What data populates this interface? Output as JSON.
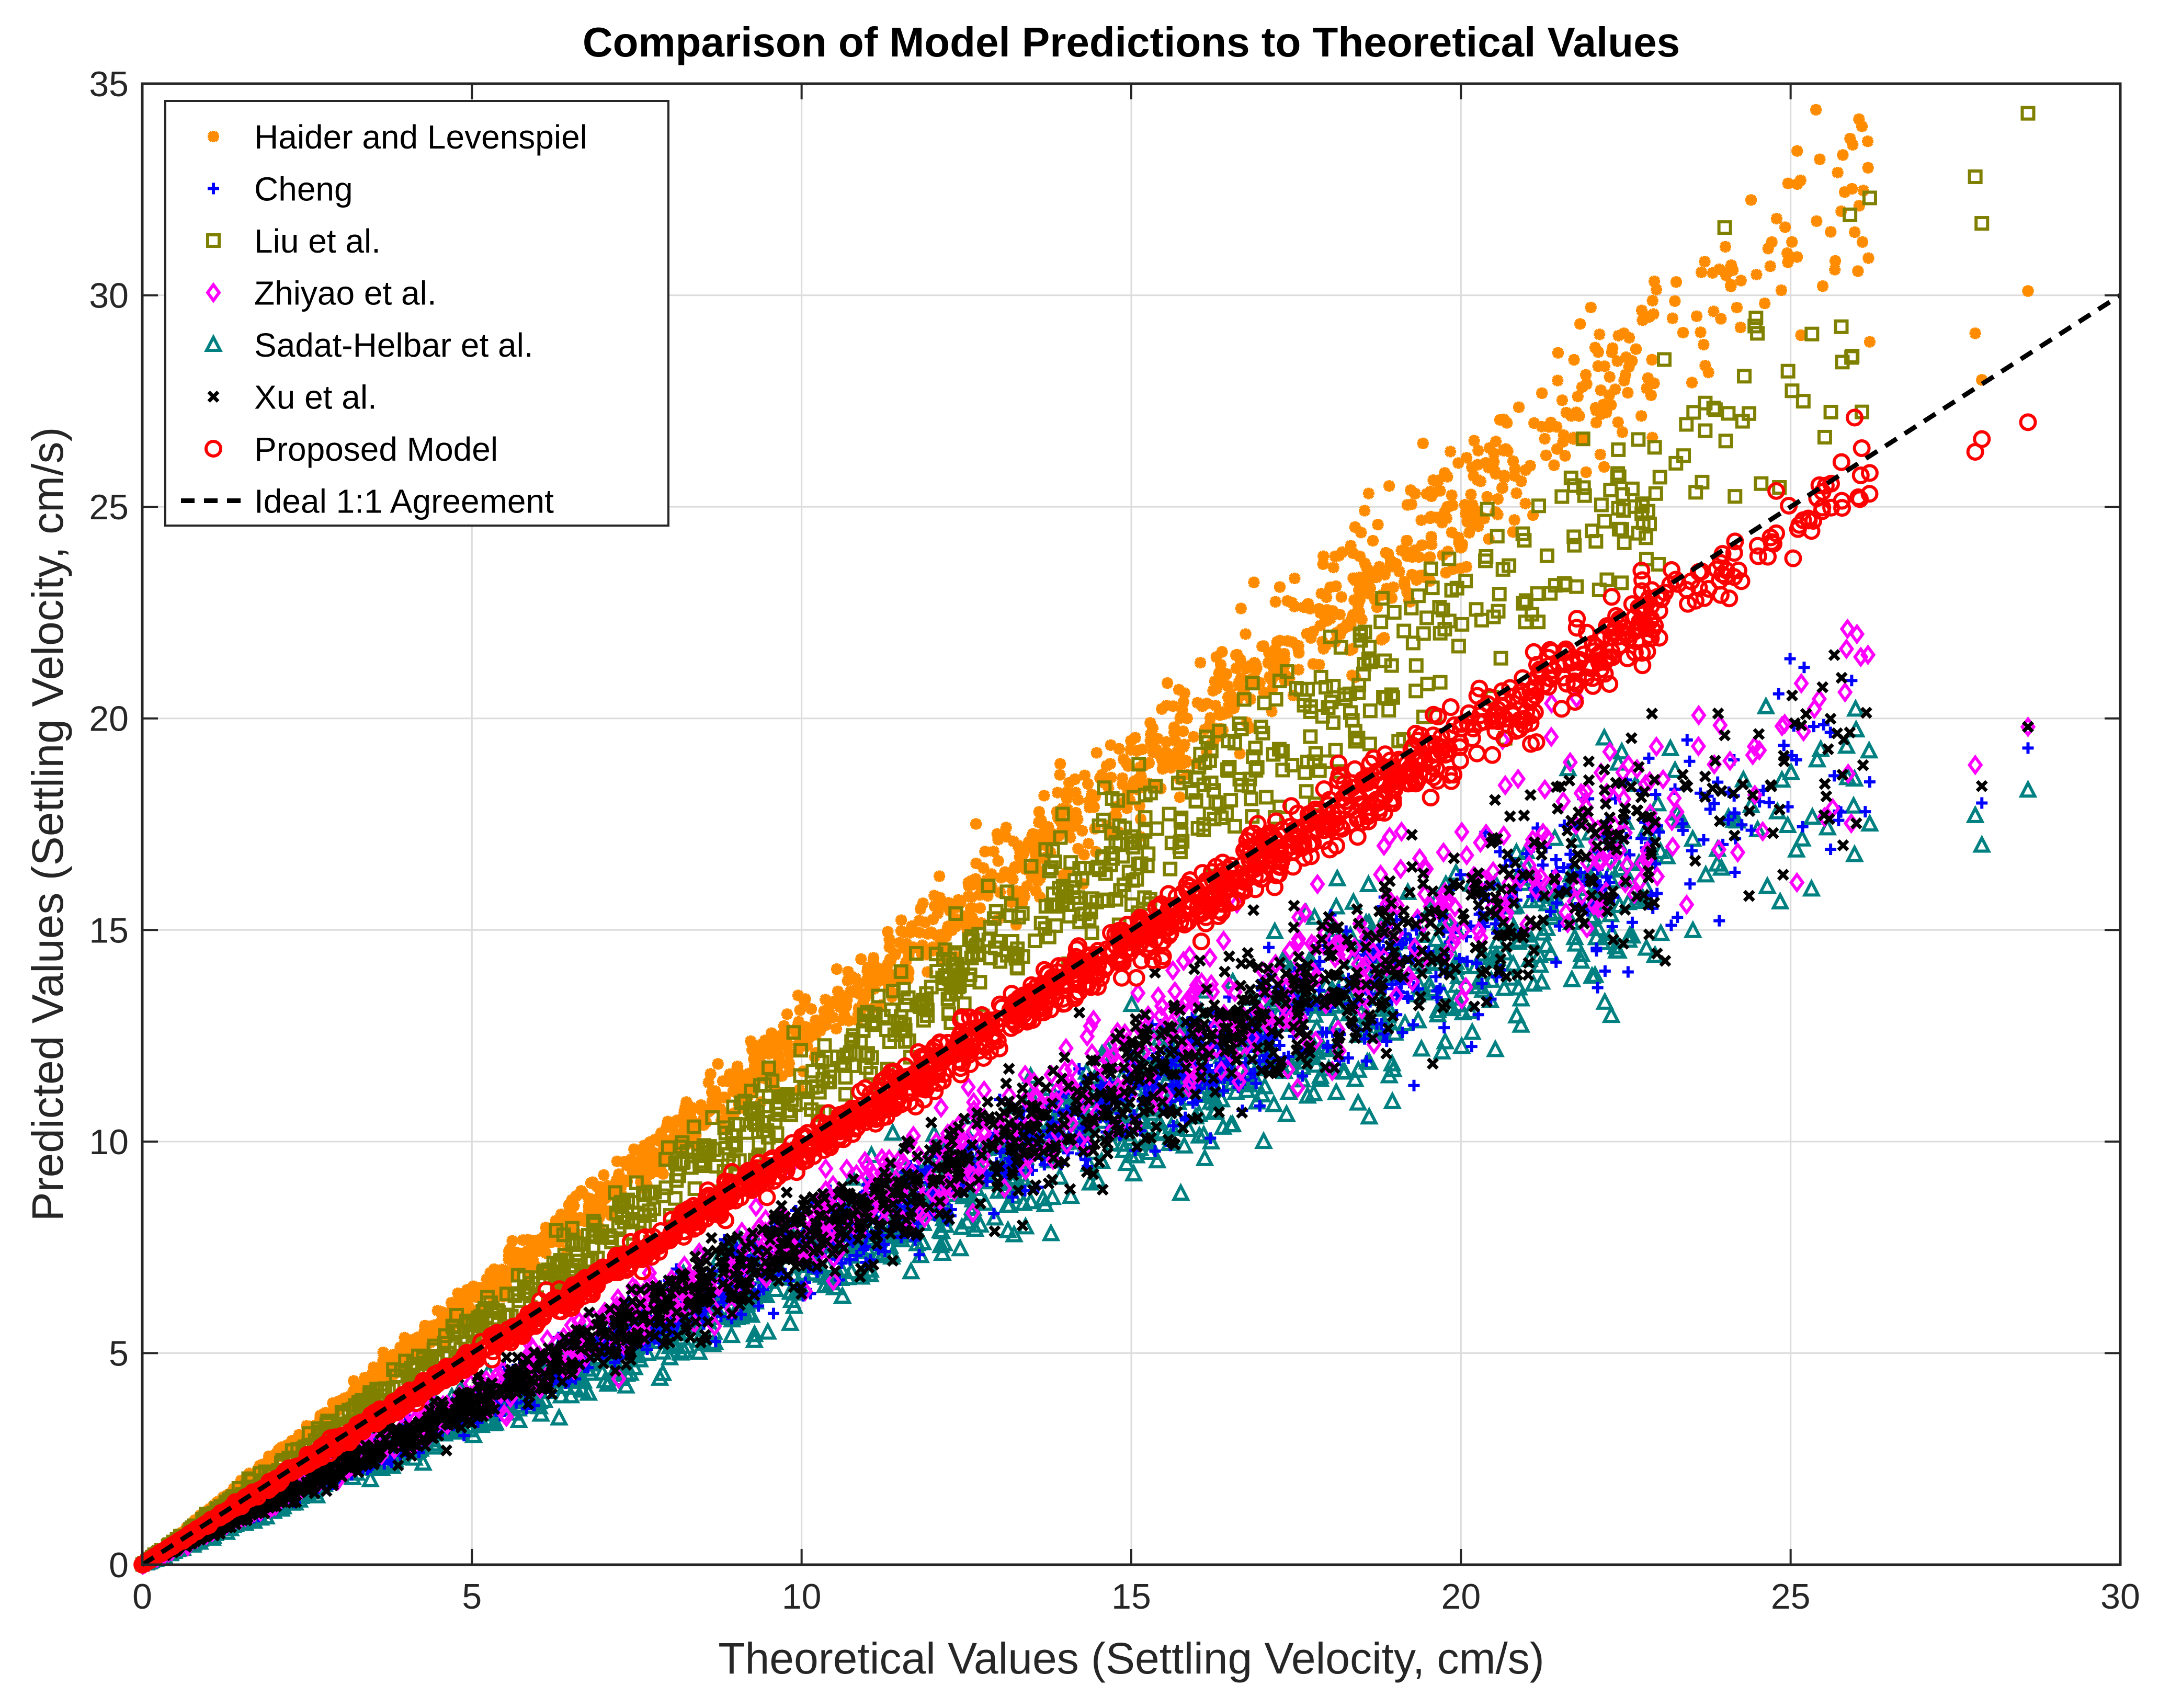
{
  "chart_data": {
    "type": "scatter",
    "title": "Comparison of Model Predictions to Theoretical Values",
    "xlabel": "Theoretical Values (Settling Velocity, cm/s)",
    "ylabel": "Predicted Values (Settling Velocity, cm/s)",
    "xlim": [
      0,
      30
    ],
    "ylim": [
      0,
      35
    ],
    "xticks": [
      0,
      5,
      10,
      15,
      20,
      25,
      30
    ],
    "yticks": [
      0,
      5,
      10,
      15,
      20,
      25,
      30,
      35
    ],
    "grid": true,
    "legend_position": "top-left",
    "series": [
      {
        "name": "Haider and Levenspiel",
        "marker": "star",
        "color": "#FF8C00",
        "slope_center": 1.25,
        "spread": 0.09
      },
      {
        "name": "Cheng",
        "marker": "plus",
        "color": "#0000FF",
        "slope_center": 0.74,
        "spread": 0.1
      },
      {
        "name": "Liu et al.",
        "marker": "square",
        "color": "#808000",
        "slope_center": 1.12,
        "spread": 0.12
      },
      {
        "name": "Zhiyao et al.",
        "marker": "diamond",
        "color": "#FF00FF",
        "slope_center": 0.78,
        "spread": 0.12
      },
      {
        "name": "Sadat-Helbar et al.",
        "marker": "triangle",
        "color": "#008080",
        "slope_center": 0.72,
        "spread": 0.13
      },
      {
        "name": "Xu et al.",
        "marker": "x",
        "color": "#000000",
        "slope_center": 0.76,
        "spread": 0.12
      },
      {
        "name": "Proposed Model",
        "marker": "circle",
        "color": "#FF0000",
        "slope_center": 0.98,
        "spread": 0.05
      }
    ],
    "reference_line": {
      "name": "Ideal 1:1 Agreement",
      "style": "dashed",
      "color": "#000000",
      "points": [
        [
          0,
          0
        ],
        [
          30,
          30
        ]
      ]
    },
    "highlighted_points": {
      "Liu et al.": [
        [
          28.6,
          34.3
        ],
        [
          27.8,
          32.8
        ],
        [
          27.9,
          31.7
        ],
        [
          26.2,
          32.3
        ],
        [
          25.9,
          31.9
        ],
        [
          24.0,
          31.6
        ]
      ],
      "Haider and Levenspiel": [
        [
          28.6,
          30.1
        ],
        [
          27.8,
          29.1
        ],
        [
          27.9,
          28.0
        ],
        [
          26.2,
          28.9
        ]
      ],
      "Proposed Model": [
        [
          28.6,
          27.0
        ],
        [
          27.9,
          26.6
        ],
        [
          27.8,
          26.3
        ],
        [
          26.2,
          25.8
        ]
      ],
      "Xu et al.": [
        [
          28.6,
          19.8
        ],
        [
          27.9,
          18.4
        ],
        [
          24.0,
          19.6
        ]
      ],
      "Zhiyao et al.": [
        [
          28.6,
          19.8
        ],
        [
          27.8,
          18.9
        ]
      ],
      "Cheng": [
        [
          28.6,
          19.3
        ],
        [
          27.9,
          18.0
        ],
        [
          26.2,
          18.5
        ]
      ],
      "Sadat-Helbar et al.": [
        [
          28.6,
          18.3
        ],
        [
          27.8,
          17.7
        ],
        [
          27.9,
          17.0
        ],
        [
          26.2,
          17.5
        ]
      ]
    }
  }
}
